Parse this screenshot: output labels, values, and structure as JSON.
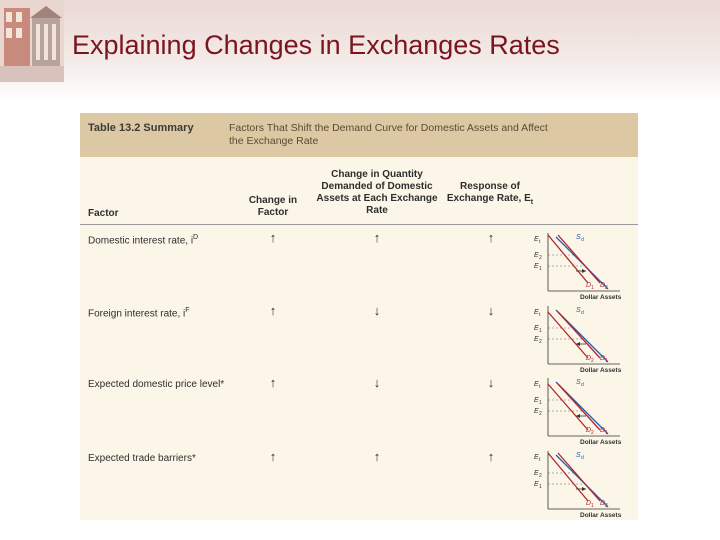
{
  "slide": {
    "title": "Explaining Changes in Exchanges Rates"
  },
  "table": {
    "label": "Table 13.2 Summary",
    "caption": "Factors That Shift the Demand Curve for Domestic Assets and Affect the Exchange Rate",
    "headers": {
      "factor": "Factor",
      "change_in_factor": "Change in Factor",
      "change_in_quantity": "Change in Quantity Demanded of Domestic Assets at Each Exchange Rate",
      "response": "Response of Exchange Rate, E",
      "response_sub": "t"
    },
    "rows": [
      {
        "factor": "Domestic interest rate, i",
        "sup": "D",
        "change": "↑",
        "quantity": "↑",
        "response": "↑",
        "graph": {
          "e_top": "E",
          "e_top_sub": "t",
          "e_mid": "E",
          "e_mid_sub": "2",
          "e_low": "E",
          "e_low_sub": "1",
          "s_label": "S",
          "s_sub": "d",
          "d_left": "D",
          "d_left_sub": "1",
          "d_right": "D",
          "d_right_sub": "2",
          "x_label": "Dollar Assets"
        }
      },
      {
        "factor": "Foreign interest rate, i",
        "sup": "F",
        "change": "↑",
        "quantity": "↓",
        "response": "↓",
        "graph": {
          "e_top": "E",
          "e_top_sub": "t",
          "e_mid": "E",
          "e_mid_sub": "1",
          "e_low": "E",
          "e_low_sub": "2",
          "s_label": "S",
          "s_sub": "d",
          "d_left": "D",
          "d_left_sub": "2",
          "d_right": "D",
          "d_right_sub": "1",
          "x_label": "Dollar Assets"
        }
      },
      {
        "factor": "Expected domestic price level*",
        "sup": "",
        "change": "↑",
        "quantity": "↓",
        "response": "↓",
        "graph": {
          "e_top": "E",
          "e_top_sub": "t",
          "e_mid": "E",
          "e_mid_sub": "1",
          "e_low": "E",
          "e_low_sub": "2",
          "s_label": "S",
          "s_sub": "d",
          "d_left": "D",
          "d_left_sub": "2",
          "d_right": "D",
          "d_right_sub": "1",
          "x_label": "Dollar Assets"
        }
      },
      {
        "factor": "Expected trade barriers*",
        "sup": "",
        "change": "↑",
        "quantity": "↑",
        "response": "↑",
        "graph": {
          "e_top": "E",
          "e_top_sub": "t",
          "e_mid": "E",
          "e_mid_sub": "2",
          "e_low": "E",
          "e_low_sub": "1",
          "s_label": "S",
          "s_sub": "d",
          "d_left": "D",
          "d_left_sub": "1",
          "d_right": "D",
          "d_right_sub": "2",
          "x_label": "Dollar Assets"
        }
      }
    ]
  },
  "colors": {
    "title": "#7a1420",
    "header_band": "#dcc9a3",
    "panel": "#fbf6e8",
    "supply": "#2a5db0",
    "demand": "#b0272d"
  }
}
